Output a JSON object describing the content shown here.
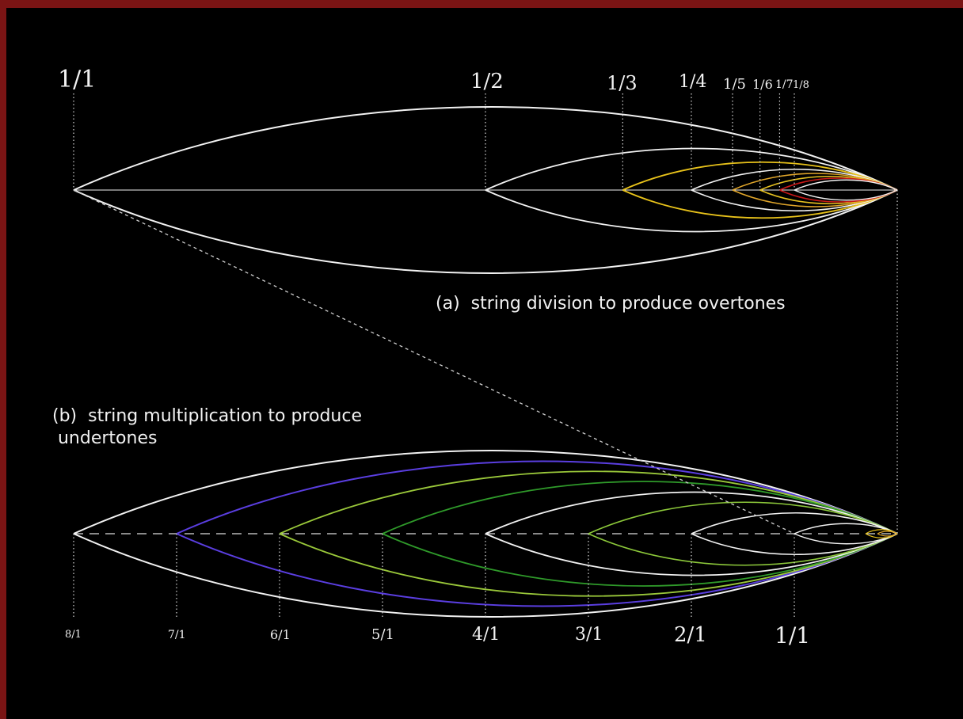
{
  "overtones": {
    "labels": [
      "1/1",
      "1/2",
      "1/3",
      "1/4",
      "1/5",
      "1/6",
      "1/7",
      "1/8"
    ],
    "caption": "(a)  string division to produce overtones"
  },
  "undertones": {
    "labels": [
      "8/1",
      "7/1",
      "6/1",
      "5/1",
      "4/1",
      "3/1",
      "2/1",
      "1/1"
    ],
    "caption_line1": "(b)  string multiplication to produce",
    "caption_line2": " undertones"
  },
  "colors": {
    "background": "#000000",
    "frame_border": "#7a1414",
    "string": "#f2f2f2",
    "harmonic_3": "#e8c21a",
    "harmonic_5": "#e0a52a",
    "harmonic_6": "#e5c020",
    "harmonic_7": "#c81818",
    "sub_7": "#5a3ee0",
    "sub_6": "#9ac83a",
    "sub_5": "#2f9a2a",
    "sub_3": "#8cc83a"
  }
}
